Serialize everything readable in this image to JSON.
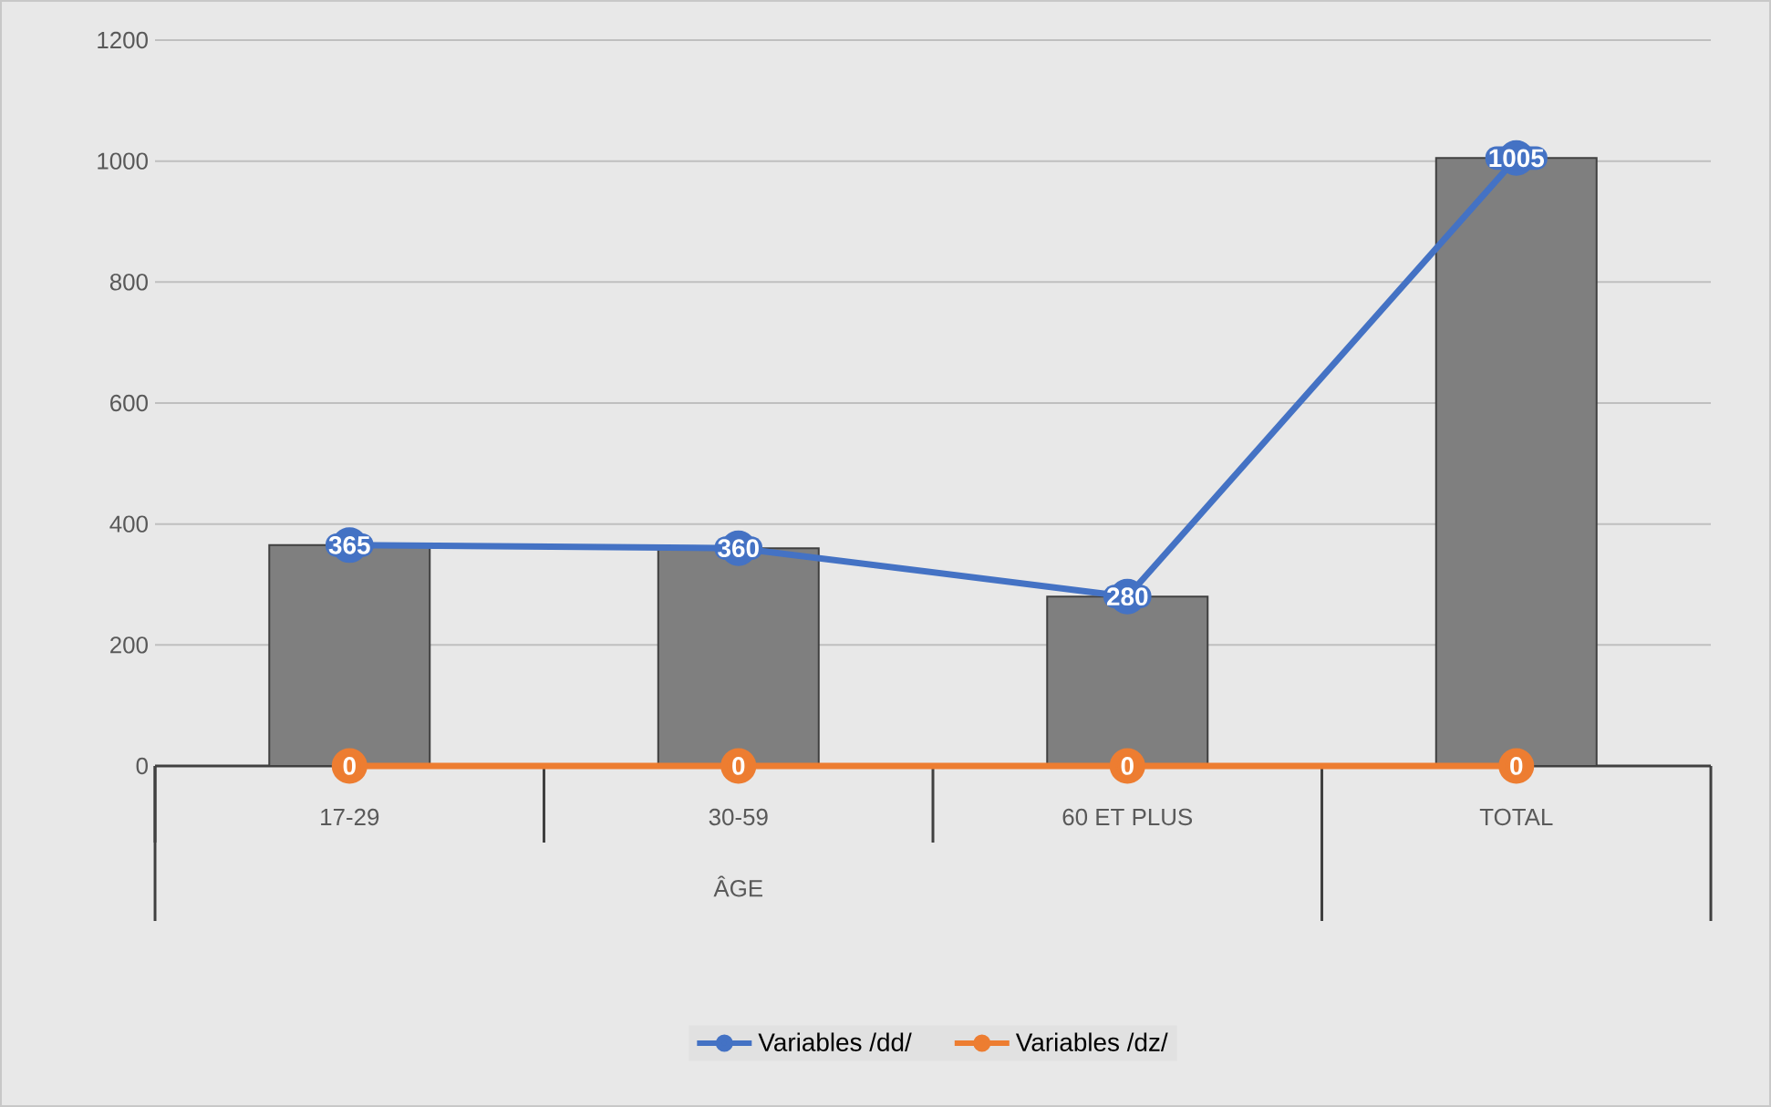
{
  "chart_data": {
    "type": "bar",
    "categories": [
      "17-29",
      "30-59",
      "60 ET PLUS",
      "TOTAL"
    ],
    "xlabel": "ÂGE",
    "series": [
      {
        "color": "#7f7f7f",
        "values": [
          365,
          360,
          280,
          1005
        ]
      },
      {
        "type": "line",
        "name": "Variables /dd/",
        "color": "#4472c4",
        "values": [
          365,
          360,
          280,
          1005
        ],
        "value_labels": [
          "365",
          "360",
          "280",
          "1005"
        ]
      },
      {
        "type": "line",
        "name": "Variables /dz/",
        "color": "#ed7d31",
        "values": [
          0,
          0,
          0,
          0
        ],
        "value_labels": [
          "0",
          "0",
          "0",
          "0"
        ]
      }
    ],
    "ylim": [
      0,
      1200
    ],
    "yticks": [
      0,
      200,
      400,
      600,
      800,
      1000,
      1200
    ],
    "grid": "y",
    "legend": "bottom",
    "marker": "circle"
  }
}
